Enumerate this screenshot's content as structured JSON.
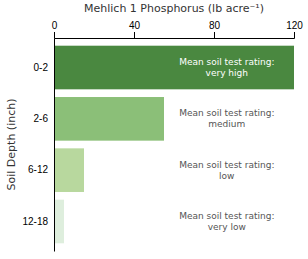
{
  "chart_data": {
    "type": "bar",
    "orientation": "horizontal",
    "xlabel": "Mehlich 1 Phosphorus (lb acre⁻¹)",
    "ylabel": "Soil Depth (inch)",
    "categories": [
      "0-2",
      "2-6",
      "6-12",
      "12-18"
    ],
    "values": [
      120,
      55,
      15,
      5
    ],
    "colors": [
      "#4a8840",
      "#8bbf78",
      "#b8d89e",
      "#deeedd"
    ],
    "annotations": [
      "Mean soil test rating:\nvery high",
      "Mean soil test rating:\nmedium",
      "Mean soil test rating:\nlow",
      "Mean soil test rating:\nvery low"
    ],
    "xlim": [
      0,
      120
    ],
    "xticks": [
      0,
      40,
      80,
      120
    ],
    "grid": false
  }
}
